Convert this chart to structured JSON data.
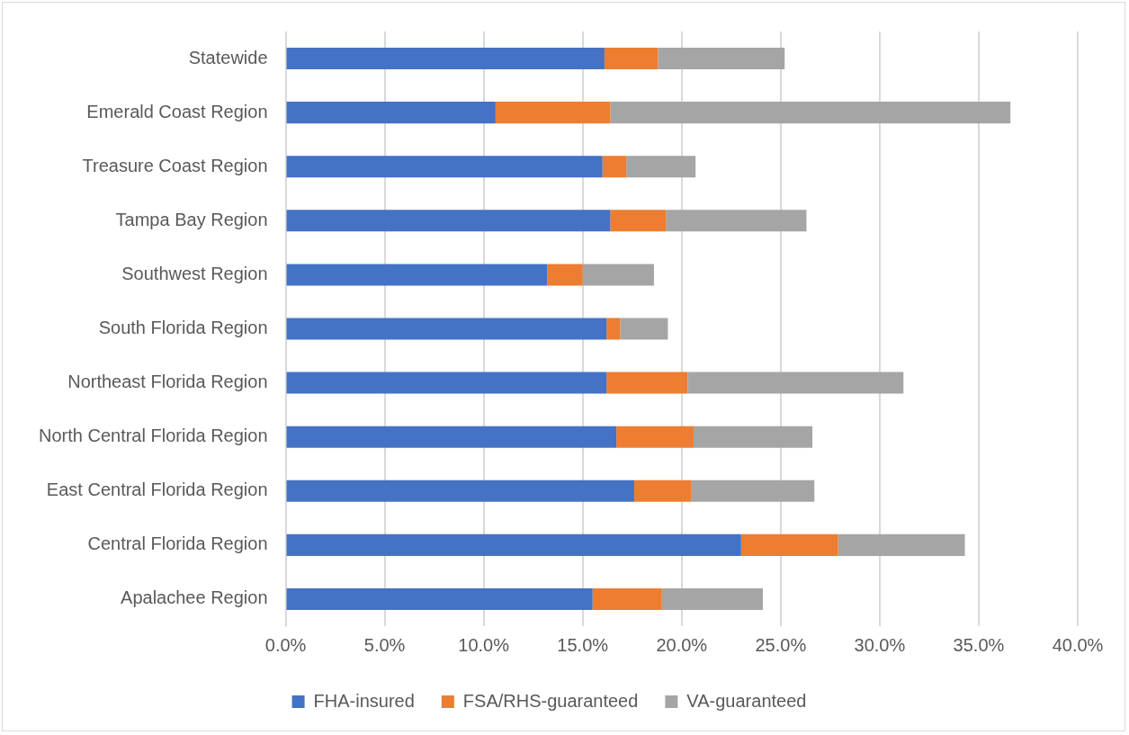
{
  "chart_data": {
    "type": "bar",
    "orientation": "horizontal",
    "stacked": true,
    "categories": [
      "Statewide",
      "Emerald Coast Region",
      "Treasure Coast Region",
      "Tampa Bay Region",
      "Southwest Region",
      "South Florida Region",
      "Northeast Florida Region",
      "North Central Florida Region",
      "East Central Florida Region",
      "Central Florida Region",
      "Apalachee Region"
    ],
    "series": [
      {
        "name": "FHA-insured",
        "color": "#4472c4",
        "values": [
          16.1,
          10.6,
          16.0,
          16.4,
          13.2,
          16.2,
          16.2,
          16.7,
          17.6,
          23.0,
          15.5
        ]
      },
      {
        "name": "FSA/RHS-guaranteed",
        "color": "#ed7d31",
        "values": [
          2.7,
          5.8,
          1.2,
          2.8,
          1.8,
          0.7,
          4.1,
          3.9,
          2.9,
          4.9,
          3.5
        ]
      },
      {
        "name": "VA-guaranteed",
        "color": "#a5a5a5",
        "values": [
          6.4,
          20.2,
          3.5,
          7.1,
          3.6,
          2.4,
          10.9,
          6.0,
          6.2,
          6.4,
          5.1
        ]
      }
    ],
    "xlim": [
      0,
      40
    ],
    "xticks": [
      {
        "value": 0,
        "label": "0.0%"
      },
      {
        "value": 5,
        "label": "5.0%"
      },
      {
        "value": 10,
        "label": "10.0%"
      },
      {
        "value": 15,
        "label": "15.0%"
      },
      {
        "value": 20,
        "label": "20.0%"
      },
      {
        "value": 25,
        "label": "25.0%"
      },
      {
        "value": 30,
        "label": "30.0%"
      },
      {
        "value": 35,
        "label": "35.0%"
      },
      {
        "value": 40,
        "label": "40.0%"
      }
    ],
    "grid": "x",
    "legend": "bottom"
  }
}
